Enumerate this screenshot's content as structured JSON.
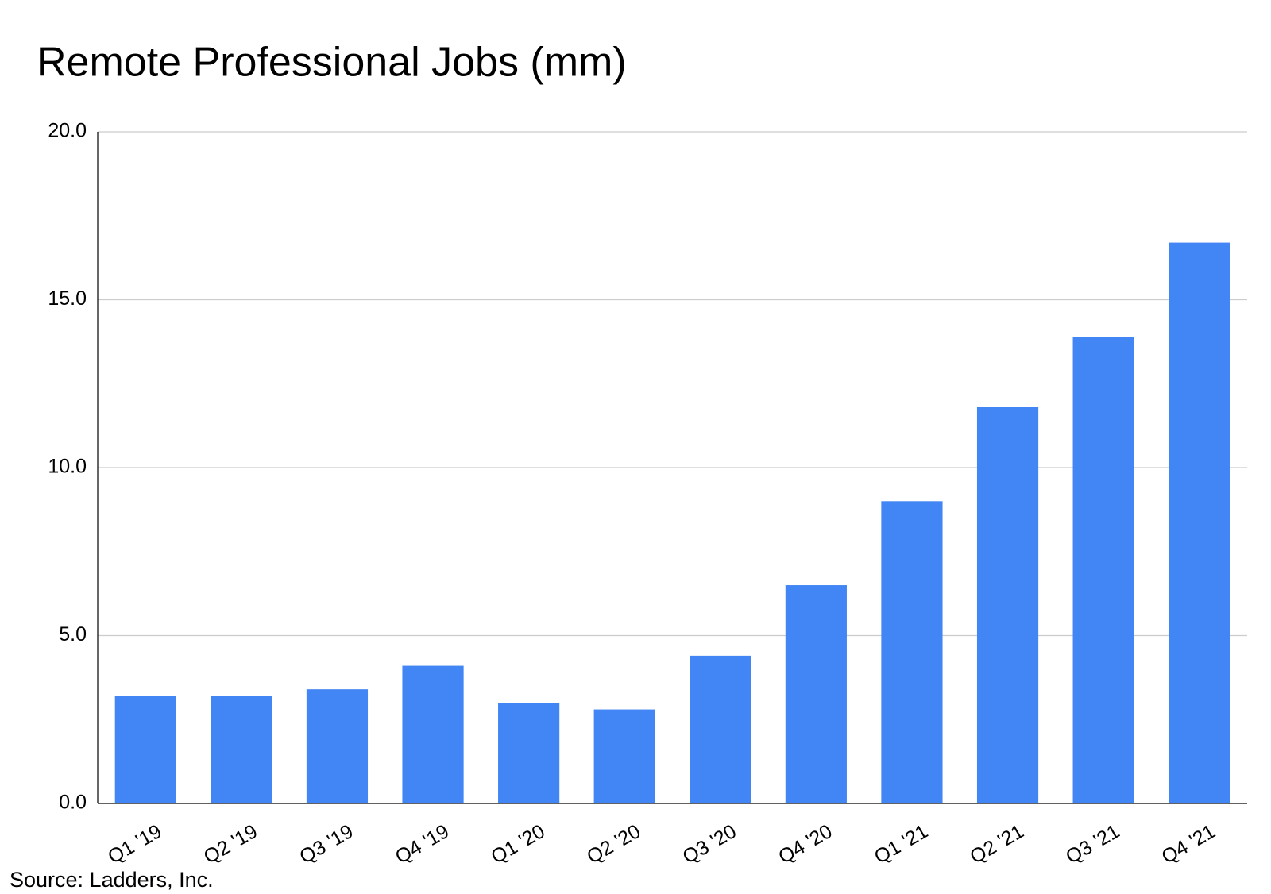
{
  "chart_data": {
    "type": "bar",
    "title": "Remote Professional Jobs (mm)",
    "source": "Source: Ladders, Inc.",
    "categories": [
      "Q1 '19",
      "Q2 '19",
      "Q3 '19",
      "Q4 '19",
      "Q1 '20",
      "Q2 '20",
      "Q3 '20",
      "Q4 '20",
      "Q1 '21",
      "Q2 '21",
      "Q3 '21",
      "Q4 '21"
    ],
    "values": [
      3.2,
      3.2,
      3.4,
      4.1,
      3.0,
      2.8,
      4.4,
      6.5,
      9.0,
      11.8,
      13.9,
      16.7
    ],
    "color": "#4285f4",
    "ylim": [
      0,
      20
    ],
    "yticks": [
      {
        "value": 0,
        "label": "0.0"
      },
      {
        "value": 5,
        "label": "5.0"
      },
      {
        "value": 10,
        "label": "10.0"
      },
      {
        "value": 15,
        "label": "15.0"
      },
      {
        "value": 20,
        "label": "20.0"
      }
    ],
    "grid": true
  }
}
